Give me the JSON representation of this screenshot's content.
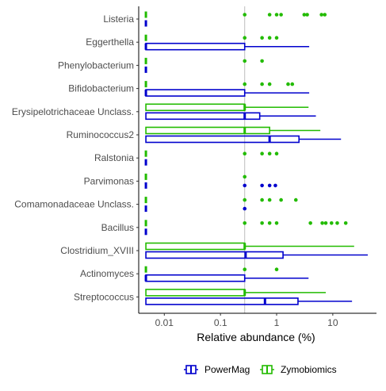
{
  "chart_data": {
    "type": "boxplot",
    "xlabel": "Relative abundance (%)",
    "x_scale": "log10",
    "xlim": [
      0.0035,
      60
    ],
    "x_ticks": [
      {
        "value": 0.01,
        "label": "0.01"
      },
      {
        "value": 0.1,
        "label": "0.1"
      },
      {
        "value": 1,
        "label": "1"
      },
      {
        "value": 10,
        "label": "10"
      }
    ],
    "reference_line": 0.27,
    "categories": [
      "Streptococcus",
      "Actinomyces",
      "Clostridium_XVIII",
      "Bacillus",
      "Comamonadaceae Unclass.",
      "Parvimonas",
      "Ralstonia",
      "Ruminococcus2",
      "Erysipelotrichaceae Unclass.",
      "Bifidobacterium",
      "Phenylobacterium",
      "Eggerthella",
      "Listeria"
    ],
    "legend_position": "bottom",
    "series": [
      {
        "name": "PowerMag",
        "color": "#0000CD",
        "boxes": [
          {
            "category": "Streptococcus",
            "lower_whisker": 0.0047,
            "q1": 0.0047,
            "median": 0.62,
            "q3": 2.4,
            "upper_whisker": 22
          },
          {
            "category": "Actinomyces",
            "lower_whisker": 0.0047,
            "q1": 0.0047,
            "median": 0.0047,
            "q3": 0.27,
            "upper_whisker": 3.7
          },
          {
            "category": "Clostridium_XVIII",
            "lower_whisker": 0.0047,
            "q1": 0.0047,
            "median": 0.28,
            "q3": 1.3,
            "upper_whisker": 42
          },
          {
            "category": "Bacillus",
            "lower_whisker": 0.0047,
            "q1": 0.0047,
            "median": 0.0047,
            "q3": 0.0047,
            "upper_whisker": 0.0047
          },
          {
            "category": "Comamonadaceae Unclass.",
            "lower_whisker": 0.0047,
            "q1": 0.0047,
            "median": 0.0047,
            "q3": 0.0047,
            "upper_whisker": 0.0047,
            "outliers": [
              0.27
            ]
          },
          {
            "category": "Parvimonas",
            "lower_whisker": 0.0047,
            "q1": 0.0047,
            "median": 0.0047,
            "q3": 0.0047,
            "upper_whisker": 0.0047,
            "outliers": [
              0.27,
              0.55,
              0.75,
              0.95
            ]
          },
          {
            "category": "Ralstonia",
            "lower_whisker": 0.0047,
            "q1": 0.0047,
            "median": 0.0047,
            "q3": 0.0047,
            "upper_whisker": 0.0047
          },
          {
            "category": "Ruminococcus2",
            "lower_whisker": 0.0047,
            "q1": 0.0047,
            "median": 0.75,
            "q3": 2.5,
            "upper_whisker": 14
          },
          {
            "category": "Erysipelotrichaceae Unclass.",
            "lower_whisker": 0.0047,
            "q1": 0.0047,
            "median": 0.27,
            "q3": 0.5,
            "upper_whisker": 5
          },
          {
            "category": "Bifidobacterium",
            "lower_whisker": 0.0047,
            "q1": 0.0047,
            "median": 0.0047,
            "q3": 0.27,
            "upper_whisker": 3.8
          },
          {
            "category": "Phenylobacterium",
            "lower_whisker": 0.0047,
            "q1": 0.0047,
            "median": 0.0047,
            "q3": 0.0047,
            "upper_whisker": 0.0047
          },
          {
            "category": "Eggerthella",
            "lower_whisker": 0.0047,
            "q1": 0.0047,
            "median": 0.0047,
            "q3": 0.27,
            "upper_whisker": 3.8
          },
          {
            "category": "Listeria",
            "lower_whisker": 0.0047,
            "q1": 0.0047,
            "median": 0.0047,
            "q3": 0.0047,
            "upper_whisker": 0.0047
          }
        ]
      },
      {
        "name": "Zymobiomics",
        "color": "#22BB00",
        "boxes": [
          {
            "category": "Streptococcus",
            "lower_whisker": 0.0047,
            "q1": 0.0047,
            "median": 0.27,
            "q3": 0.27,
            "upper_whisker": 7.5
          },
          {
            "category": "Actinomyces",
            "lower_whisker": 0.0047,
            "q1": 0.0047,
            "median": 0.0047,
            "q3": 0.0047,
            "upper_whisker": 0.0047,
            "outliers": [
              0.27,
              1.0
            ]
          },
          {
            "category": "Clostridium_XVIII",
            "lower_whisker": 0.0047,
            "q1": 0.0047,
            "median": 0.27,
            "q3": 0.27,
            "upper_whisker": 24
          },
          {
            "category": "Bacillus",
            "lower_whisker": 0.0047,
            "q1": 0.0047,
            "median": 0.0047,
            "q3": 0.0047,
            "upper_whisker": 0.0047,
            "outliers": [
              0.27,
              0.55,
              0.75,
              1.0,
              4.0,
              6.5,
              7.5,
              9.5,
              12,
              17
            ]
          },
          {
            "category": "Comamonadaceae Unclass.",
            "lower_whisker": 0.0047,
            "q1": 0.0047,
            "median": 0.0047,
            "q3": 0.0047,
            "upper_whisker": 0.0047,
            "outliers": [
              0.27,
              0.55,
              0.75,
              1.2,
              2.2
            ]
          },
          {
            "category": "Parvimonas",
            "lower_whisker": 0.0047,
            "q1": 0.0047,
            "median": 0.0047,
            "q3": 0.0047,
            "upper_whisker": 0.0047,
            "outliers": [
              0.27
            ]
          },
          {
            "category": "Ralstonia",
            "lower_whisker": 0.0047,
            "q1": 0.0047,
            "median": 0.0047,
            "q3": 0.0047,
            "upper_whisker": 0.0047,
            "outliers": [
              0.27,
              0.55,
              0.75,
              1.0
            ]
          },
          {
            "category": "Ruminococcus2",
            "lower_whisker": 0.0047,
            "q1": 0.0047,
            "median": 0.27,
            "q3": 0.75,
            "upper_whisker": 6.0
          },
          {
            "category": "Erysipelotrichaceae Unclass.",
            "lower_whisker": 0.0047,
            "q1": 0.0047,
            "median": 0.27,
            "q3": 0.27,
            "upper_whisker": 3.7
          },
          {
            "category": "Bifidobacterium",
            "lower_whisker": 0.0047,
            "q1": 0.0047,
            "median": 0.0047,
            "q3": 0.0047,
            "upper_whisker": 0.0047,
            "outliers": [
              0.27,
              0.55,
              0.75,
              1.6,
              1.9
            ]
          },
          {
            "category": "Phenylobacterium",
            "lower_whisker": 0.0047,
            "q1": 0.0047,
            "median": 0.0047,
            "q3": 0.0047,
            "upper_whisker": 0.0047,
            "outliers": [
              0.27,
              0.55
            ]
          },
          {
            "category": "Eggerthella",
            "lower_whisker": 0.0047,
            "q1": 0.0047,
            "median": 0.0047,
            "q3": 0.0047,
            "upper_whisker": 0.0047,
            "outliers": [
              0.27,
              0.55,
              0.75,
              1.0
            ]
          },
          {
            "category": "Listeria",
            "lower_whisker": 0.0047,
            "q1": 0.0047,
            "median": 0.0047,
            "q3": 0.0047,
            "upper_whisker": 0.0047,
            "outliers": [
              0.27,
              0.75,
              1.0,
              1.2,
              3.1,
              3.5,
              6.3,
              7.2
            ]
          }
        ]
      }
    ]
  }
}
